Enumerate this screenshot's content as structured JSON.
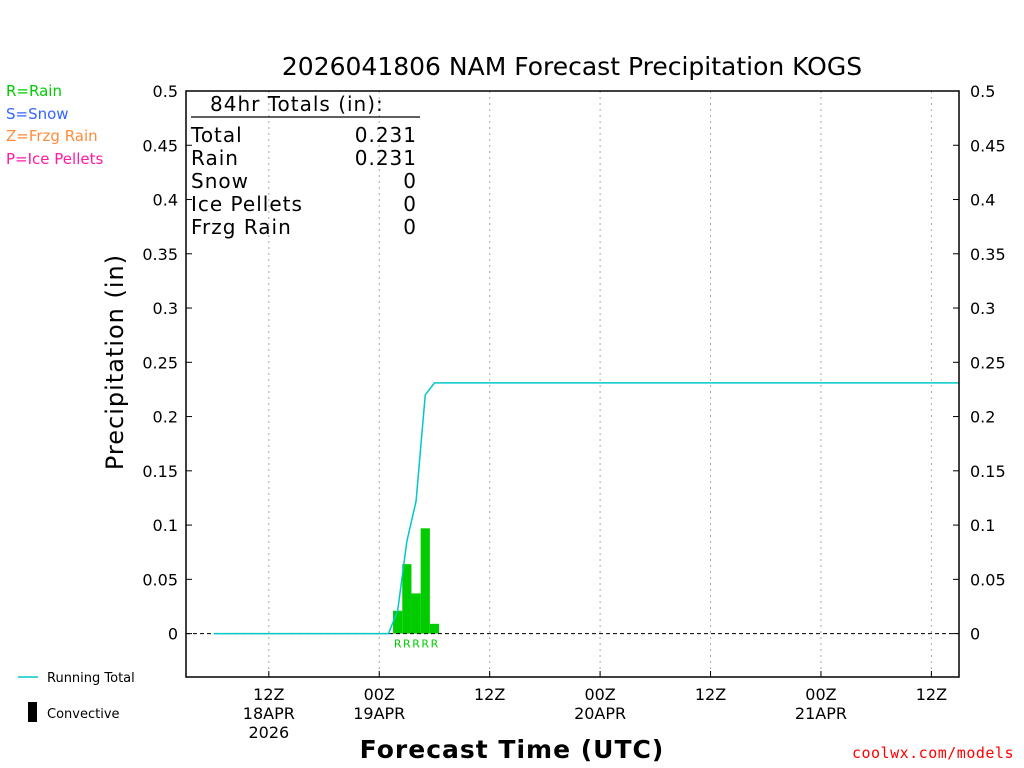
{
  "title": "2026041806 NAM Forecast Precipitation KOGS",
  "totals_box": {
    "header": "84hr Totals (in):",
    "rows": [
      {
        "label": "Total",
        "value": "0.231"
      },
      {
        "label": "Rain",
        "value": "0.231"
      },
      {
        "label": "Snow",
        "value": "0"
      },
      {
        "label": "Ice Pellets",
        "value": "0"
      },
      {
        "label": "Frzg Rain",
        "value": "0"
      }
    ]
  },
  "type_legend": [
    {
      "label": "R=Rain",
      "color": "#00cc00"
    },
    {
      "label": "S=Snow",
      "color": "#3366ff"
    },
    {
      "label": "Z=Frzg Rain",
      "color": "#ff8c3a"
    },
    {
      "label": "P=Ice Pellets",
      "color": "#ff1aa8"
    }
  ],
  "bottom_legend": {
    "running_total_label": "Running Total",
    "convective_label": "Convective"
  },
  "watermark": "coolwx.com/models",
  "chart_data": {
    "type": "bar",
    "title": "2026041806 NAM Forecast Precipitation KOGS",
    "xlabel": "Forecast Time (UTC)",
    "ylabel": "Precipitation (in)",
    "ylim": [
      -0.04,
      0.5
    ],
    "xlim_hours": [
      -3,
      81
    ],
    "y_ticks": [
      "0",
      "0.05",
      "0.1",
      "0.15",
      "0.2",
      "0.25",
      "0.3",
      "0.35",
      "0.4",
      "0.45",
      "0.5"
    ],
    "y_tick_values": [
      0,
      0.05,
      0.1,
      0.15,
      0.2,
      0.25,
      0.3,
      0.35,
      0.4,
      0.45,
      0.5
    ],
    "x_ticks": [
      {
        "hour": 6,
        "label": "12Z",
        "date": "18APR",
        "year": "2026"
      },
      {
        "hour": 18,
        "label": "00Z",
        "date": "19APR",
        "year": ""
      },
      {
        "hour": 30,
        "label": "12Z",
        "date": "",
        "year": ""
      },
      {
        "hour": 42,
        "label": "00Z",
        "date": "20APR",
        "year": ""
      },
      {
        "hour": 54,
        "label": "12Z",
        "date": "",
        "year": ""
      },
      {
        "hour": 66,
        "label": "00Z",
        "date": "21APR",
        "year": ""
      },
      {
        "hour": 78,
        "label": "12Z",
        "date": "",
        "year": ""
      }
    ],
    "grid": "vertical dotted",
    "bars": {
      "name": "Rain",
      "color": "#00cc00",
      "hours": [
        20,
        21,
        22,
        23,
        24
      ],
      "values": [
        0.021,
        0.064,
        0.037,
        0.097,
        0.009
      ],
      "type_labels": [
        "R",
        "R",
        "R",
        "R",
        "R"
      ]
    },
    "running_total": {
      "name": "Running Total",
      "color": "#00c8c8",
      "hours": [
        0,
        19,
        20,
        21,
        22,
        23,
        24,
        30,
        81
      ],
      "values": [
        0,
        0,
        0.021,
        0.085,
        0.122,
        0.22,
        0.231,
        0.231,
        0.231
      ]
    }
  }
}
